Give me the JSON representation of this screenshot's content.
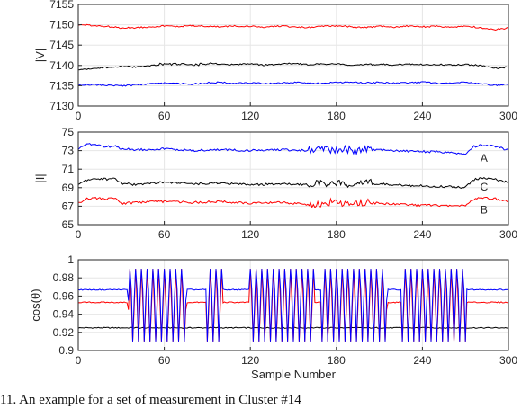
{
  "chart_data": [
    {
      "type": "line",
      "title": "",
      "xlabel": "",
      "ylabel": "|V|",
      "xlim": [
        0,
        300
      ],
      "ylim": [
        7130,
        7155
      ],
      "xticks": [
        0,
        60,
        120,
        180,
        240,
        300
      ],
      "yticks": [
        7130,
        7135,
        7140,
        7145,
        7150,
        7155
      ],
      "grid": true,
      "series": [
        {
          "color": "#ff0000",
          "x": [
            0,
            10,
            20,
            30,
            40,
            50,
            60,
            70,
            80,
            90,
            100,
            110,
            120,
            130,
            140,
            150,
            160,
            170,
            180,
            190,
            200,
            210,
            220,
            230,
            240,
            250,
            260,
            270,
            280,
            290,
            300
          ],
          "y": [
            7150,
            7149.8,
            7149.6,
            7149.2,
            7149.3,
            7149.5,
            7149.7,
            7149.6,
            7149.8,
            7149.6,
            7149.5,
            7149.7,
            7149.6,
            7149.4,
            7149.7,
            7149.5,
            7149.3,
            7149.6,
            7149.8,
            7149.5,
            7149.3,
            7149.6,
            7149.4,
            7149.7,
            7149.5,
            7149.6,
            7149.4,
            7149.7,
            7149.3,
            7148.8,
            7149.2
          ]
        },
        {
          "color": "#000000",
          "x": [
            0,
            10,
            20,
            30,
            40,
            50,
            60,
            70,
            80,
            90,
            100,
            110,
            120,
            130,
            140,
            150,
            160,
            170,
            180,
            190,
            200,
            210,
            220,
            230,
            240,
            250,
            260,
            270,
            280,
            290,
            300
          ],
          "y": [
            7139,
            7139.3,
            7139.5,
            7139.8,
            7139.6,
            7139.9,
            7140.4,
            7140.3,
            7140.1,
            7140.5,
            7140.3,
            7140.2,
            7140.4,
            7140.1,
            7140.3,
            7140.5,
            7140.2,
            7140.3,
            7140.4,
            7140.1,
            7140.2,
            7140.3,
            7140.1,
            7140.4,
            7140.2,
            7140.3,
            7140.1,
            7140.2,
            7140.0,
            7139.3,
            7139.6
          ]
        },
        {
          "color": "#0000ff",
          "x": [
            0,
            10,
            20,
            30,
            40,
            50,
            60,
            70,
            80,
            90,
            100,
            110,
            120,
            130,
            140,
            150,
            160,
            170,
            180,
            190,
            200,
            210,
            220,
            230,
            240,
            250,
            260,
            270,
            280,
            290,
            300
          ],
          "y": [
            7135.2,
            7135.3,
            7135.1,
            7135.0,
            7135.2,
            7135.4,
            7135.6,
            7135.5,
            7135.4,
            7135.7,
            7135.8,
            7135.6,
            7135.7,
            7135.5,
            7135.6,
            7135.8,
            7135.7,
            7135.6,
            7135.8,
            7135.9,
            7135.7,
            7135.8,
            7135.6,
            7135.7,
            7135.9,
            7135.6,
            7135.7,
            7135.8,
            7135.5,
            7135.1,
            7135.4
          ]
        }
      ]
    },
    {
      "type": "line",
      "title": "",
      "xlabel": "",
      "ylabel": "|I|",
      "xlim": [
        0,
        300
      ],
      "ylim": [
        65,
        75
      ],
      "xticks": [
        0,
        60,
        120,
        180,
        240,
        300
      ],
      "yticks": [
        65,
        67,
        69,
        71,
        73,
        75
      ],
      "grid": true,
      "annotations": [
        {
          "text": "A",
          "x": 283,
          "y": 72.2
        },
        {
          "text": "C",
          "x": 283,
          "y": 69.1
        },
        {
          "text": "B",
          "x": 283,
          "y": 66.6
        }
      ],
      "series": [
        {
          "color": "#0000ff",
          "x": [
            0,
            5,
            10,
            20,
            25,
            30,
            40,
            60,
            80,
            100,
            120,
            140,
            160,
            170,
            180,
            190,
            200,
            220,
            240,
            260,
            270,
            275,
            280,
            290,
            295,
            300
          ],
          "y": [
            73.2,
            73.6,
            73.7,
            73.4,
            73.5,
            73.2,
            73.1,
            73.2,
            73.0,
            73.1,
            73.0,
            73.1,
            73.0,
            73.1,
            73.2,
            73.0,
            73.1,
            73.0,
            72.9,
            72.8,
            72.6,
            73.4,
            73.6,
            73.5,
            73.3,
            73.0
          ]
        },
        {
          "color": "#000000",
          "x": [
            0,
            5,
            10,
            20,
            25,
            30,
            40,
            60,
            80,
            100,
            120,
            140,
            160,
            170,
            180,
            190,
            200,
            220,
            240,
            260,
            270,
            275,
            280,
            290,
            295,
            300
          ],
          "y": [
            69.4,
            69.8,
            70.0,
            69.9,
            70.1,
            69.5,
            69.3,
            69.6,
            69.4,
            69.5,
            69.3,
            69.4,
            69.3,
            69.4,
            69.5,
            69.4,
            69.5,
            69.3,
            69.2,
            69.1,
            69.0,
            69.8,
            70.0,
            69.9,
            69.8,
            69.5
          ]
        },
        {
          "color": "#ff0000",
          "x": [
            0,
            5,
            10,
            20,
            25,
            30,
            40,
            60,
            80,
            100,
            120,
            140,
            160,
            170,
            180,
            190,
            200,
            220,
            240,
            260,
            270,
            275,
            280,
            290,
            295,
            300
          ],
          "y": [
            67.3,
            67.8,
            67.9,
            67.8,
            67.9,
            67.3,
            67.4,
            67.5,
            67.4,
            67.5,
            67.3,
            67.4,
            67.2,
            67.3,
            67.4,
            67.3,
            67.4,
            67.2,
            67.1,
            67.1,
            67.0,
            67.7,
            67.9,
            67.8,
            67.7,
            67.5
          ]
        }
      ]
    },
    {
      "type": "line",
      "title": "",
      "xlabel": "Sample Number",
      "ylabel": "cos(θ)",
      "xlim": [
        0,
        300
      ],
      "ylim": [
        0.9,
        1.0
      ],
      "xticks": [
        0,
        60,
        120,
        180,
        240,
        300
      ],
      "yticks": [
        0.9,
        0.92,
        0.94,
        0.96,
        0.98,
        1.0
      ],
      "ytick_labels": [
        "0.9",
        "0.92",
        "0.94",
        "0.96",
        "0.98",
        "1"
      ],
      "grid": true,
      "oscillation_segments": [
        [
          35,
          75
        ],
        [
          90,
          100
        ],
        [
          120,
          165
        ],
        [
          170,
          215
        ],
        [
          225,
          270
        ]
      ],
      "oscillation_range": [
        0.91,
        0.99
      ],
      "series": [
        {
          "color": "#000000",
          "base": 0.925
        },
        {
          "color": "#ff0000",
          "base": 0.953
        },
        {
          "color": "#0000ff",
          "base": 0.967
        }
      ]
    }
  ],
  "caption": "11.  An example for a set of measurement in Cluster #14"
}
